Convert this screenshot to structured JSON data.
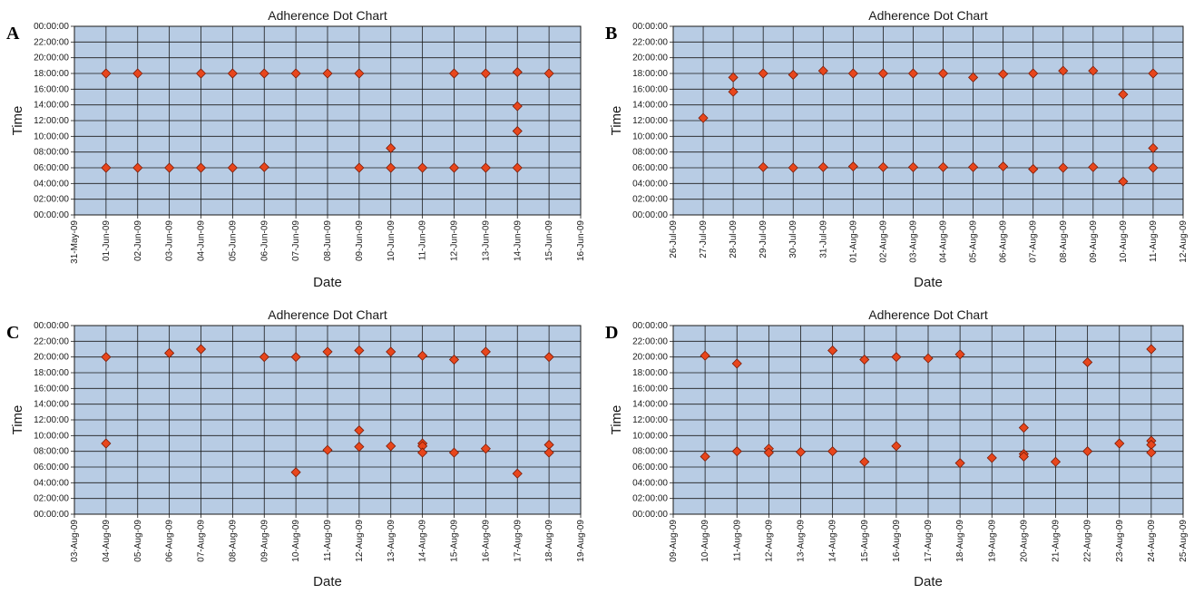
{
  "colors": {
    "plot_background": "#b8cce4",
    "grid": "#1a1a1a",
    "marker_fill": "#e8461c",
    "marker_stroke": "#7a1a06",
    "text": "#1a1a1a"
  },
  "marker_shape": "diamond",
  "chart_data": [
    {
      "panel_label": "A",
      "type": "scatter",
      "title": "Adherence Dot Chart",
      "xlabel": "Date",
      "ylabel": "Time",
      "grid": true,
      "y_ticks": [
        "00:00:00",
        "02:00:00",
        "04:00:00",
        "06:00:00",
        "08:00:00",
        "10:00:00",
        "12:00:00",
        "14:00:00",
        "16:00:00",
        "18:00:00",
        "20:00:00",
        "22:00:00",
        "00:00:00"
      ],
      "x_ticks": [
        "31-May-09",
        "01-Jun-09",
        "02-Jun-09",
        "03-Jun-09",
        "04-Jun-09",
        "05-Jun-09",
        "06-Jun-09",
        "07-Jun-09",
        "08-Jun-09",
        "09-Jun-09",
        "10-Jun-09",
        "11-Jun-09",
        "12-Jun-09",
        "13-Jun-09",
        "14-Jun-09",
        "15-Jun-09",
        "16-Jun-09"
      ],
      "points": [
        {
          "x": "01-Jun-09",
          "y": "18:00"
        },
        {
          "x": "01-Jun-09",
          "y": "06:00"
        },
        {
          "x": "02-Jun-09",
          "y": "18:00"
        },
        {
          "x": "02-Jun-09",
          "y": "06:00"
        },
        {
          "x": "03-Jun-09",
          "y": "06:00"
        },
        {
          "x": "04-Jun-09",
          "y": "18:00"
        },
        {
          "x": "04-Jun-09",
          "y": "06:00"
        },
        {
          "x": "05-Jun-09",
          "y": "18:00"
        },
        {
          "x": "05-Jun-09",
          "y": "06:00"
        },
        {
          "x": "06-Jun-09",
          "y": "18:00"
        },
        {
          "x": "06-Jun-09",
          "y": "06:05"
        },
        {
          "x": "07-Jun-09",
          "y": "18:00"
        },
        {
          "x": "08-Jun-09",
          "y": "18:00"
        },
        {
          "x": "09-Jun-09",
          "y": "18:00"
        },
        {
          "x": "09-Jun-09",
          "y": "06:00"
        },
        {
          "x": "10-Jun-09",
          "y": "08:30"
        },
        {
          "x": "10-Jun-09",
          "y": "06:00"
        },
        {
          "x": "11-Jun-09",
          "y": "06:00"
        },
        {
          "x": "12-Jun-09",
          "y": "18:00"
        },
        {
          "x": "12-Jun-09",
          "y": "06:00"
        },
        {
          "x": "13-Jun-09",
          "y": "18:00"
        },
        {
          "x": "13-Jun-09",
          "y": "06:00"
        },
        {
          "x": "14-Jun-09",
          "y": "18:10"
        },
        {
          "x": "14-Jun-09",
          "y": "13:50"
        },
        {
          "x": "14-Jun-09",
          "y": "10:40"
        },
        {
          "x": "14-Jun-09",
          "y": "06:00"
        },
        {
          "x": "15-Jun-09",
          "y": "18:00"
        }
      ]
    },
    {
      "panel_label": "B",
      "type": "scatter",
      "title": "Adherence Dot Chart",
      "xlabel": "Date",
      "ylabel": "Time",
      "grid": true,
      "y_ticks": [
        "00:00:00",
        "02:00:00",
        "04:00:00",
        "06:00:00",
        "08:00:00",
        "10:00:00",
        "12:00:00",
        "14:00:00",
        "16:00:00",
        "18:00:00",
        "20:00:00",
        "22:00:00",
        "00:00:00"
      ],
      "x_ticks": [
        "26-Jul-09",
        "27-Jul-09",
        "28-Jul-09",
        "29-Jul-09",
        "30-Jul-09",
        "31-Jul-09",
        "01-Aug-09",
        "02-Aug-09",
        "03-Aug-09",
        "04-Aug-09",
        "05-Aug-09",
        "06-Aug-09",
        "07-Aug-09",
        "08-Aug-09",
        "09-Aug-09",
        "10-Aug-09",
        "11-Aug-09",
        "12-Aug-09"
      ],
      "points": [
        {
          "x": "27-Jul-09",
          "y": "12:20"
        },
        {
          "x": "28-Jul-09",
          "y": "17:30"
        },
        {
          "x": "28-Jul-09",
          "y": "15:40"
        },
        {
          "x": "29-Jul-09",
          "y": "18:00"
        },
        {
          "x": "29-Jul-09",
          "y": "06:05"
        },
        {
          "x": "30-Jul-09",
          "y": "17:50"
        },
        {
          "x": "30-Jul-09",
          "y": "06:00"
        },
        {
          "x": "31-Jul-09",
          "y": "18:20"
        },
        {
          "x": "31-Jul-09",
          "y": "06:05"
        },
        {
          "x": "01-Aug-09",
          "y": "18:00"
        },
        {
          "x": "01-Aug-09",
          "y": "06:10"
        },
        {
          "x": "02-Aug-09",
          "y": "18:00"
        },
        {
          "x": "02-Aug-09",
          "y": "06:05"
        },
        {
          "x": "03-Aug-09",
          "y": "18:00"
        },
        {
          "x": "03-Aug-09",
          "y": "06:05"
        },
        {
          "x": "04-Aug-09",
          "y": "18:00"
        },
        {
          "x": "04-Aug-09",
          "y": "06:05"
        },
        {
          "x": "05-Aug-09",
          "y": "17:30"
        },
        {
          "x": "05-Aug-09",
          "y": "06:05"
        },
        {
          "x": "06-Aug-09",
          "y": "17:55"
        },
        {
          "x": "06-Aug-09",
          "y": "06:10"
        },
        {
          "x": "07-Aug-09",
          "y": "18:00"
        },
        {
          "x": "07-Aug-09",
          "y": "05:50"
        },
        {
          "x": "08-Aug-09",
          "y": "18:20"
        },
        {
          "x": "08-Aug-09",
          "y": "06:00"
        },
        {
          "x": "09-Aug-09",
          "y": "18:20"
        },
        {
          "x": "09-Aug-09",
          "y": "06:05"
        },
        {
          "x": "10-Aug-09",
          "y": "15:20"
        },
        {
          "x": "10-Aug-09",
          "y": "04:15"
        },
        {
          "x": "11-Aug-09",
          "y": "18:00"
        },
        {
          "x": "11-Aug-09",
          "y": "08:30"
        },
        {
          "x": "11-Aug-09",
          "y": "06:00"
        }
      ]
    },
    {
      "panel_label": "C",
      "type": "scatter",
      "title": "Adherence Dot Chart",
      "xlabel": "Date",
      "ylabel": "Time",
      "grid": true,
      "y_ticks": [
        "00:00:00",
        "02:00:00",
        "04:00:00",
        "06:00:00",
        "08:00:00",
        "10:00:00",
        "12:00:00",
        "14:00:00",
        "16:00:00",
        "18:00:00",
        "20:00:00",
        "22:00:00",
        "00:00:00"
      ],
      "x_ticks": [
        "03-Aug-09",
        "04-Aug-09",
        "05-Aug-09",
        "06-Aug-09",
        "07-Aug-09",
        "08-Aug-09",
        "09-Aug-09",
        "10-Aug-09",
        "11-Aug-09",
        "12-Aug-09",
        "13-Aug-09",
        "14-Aug-09",
        "15-Aug-09",
        "16-Aug-09",
        "17-Aug-09",
        "18-Aug-09",
        "19-Aug-09"
      ],
      "points": [
        {
          "x": "04-Aug-09",
          "y": "20:00"
        },
        {
          "x": "04-Aug-09",
          "y": "09:00"
        },
        {
          "x": "06-Aug-09",
          "y": "20:30"
        },
        {
          "x": "07-Aug-09",
          "y": "21:00"
        },
        {
          "x": "09-Aug-09",
          "y": "20:00"
        },
        {
          "x": "10-Aug-09",
          "y": "20:00"
        },
        {
          "x": "10-Aug-09",
          "y": "05:20"
        },
        {
          "x": "11-Aug-09",
          "y": "20:40"
        },
        {
          "x": "11-Aug-09",
          "y": "08:10"
        },
        {
          "x": "12-Aug-09",
          "y": "20:50"
        },
        {
          "x": "12-Aug-09",
          "y": "10:40"
        },
        {
          "x": "12-Aug-09",
          "y": "08:35"
        },
        {
          "x": "13-Aug-09",
          "y": "20:40"
        },
        {
          "x": "13-Aug-09",
          "y": "08:40"
        },
        {
          "x": "14-Aug-09",
          "y": "20:10"
        },
        {
          "x": "14-Aug-09",
          "y": "09:00"
        },
        {
          "x": "14-Aug-09",
          "y": "08:40"
        },
        {
          "x": "14-Aug-09",
          "y": "07:50"
        },
        {
          "x": "15-Aug-09",
          "y": "19:40"
        },
        {
          "x": "15-Aug-09",
          "y": "07:50"
        },
        {
          "x": "16-Aug-09",
          "y": "20:40"
        },
        {
          "x": "16-Aug-09",
          "y": "08:20"
        },
        {
          "x": "17-Aug-09",
          "y": "05:10"
        },
        {
          "x": "18-Aug-09",
          "y": "20:00"
        },
        {
          "x": "18-Aug-09",
          "y": "08:50"
        },
        {
          "x": "18-Aug-09",
          "y": "07:50"
        }
      ]
    },
    {
      "panel_label": "D",
      "type": "scatter",
      "title": "Adherence Dot Chart",
      "xlabel": "Date",
      "ylabel": "Time",
      "grid": true,
      "y_ticks": [
        "00:00:00",
        "02:00:00",
        "04:00:00",
        "06:00:00",
        "08:00:00",
        "10:00:00",
        "12:00:00",
        "14:00:00",
        "16:00:00",
        "18:00:00",
        "20:00:00",
        "22:00:00",
        "00:00:00"
      ],
      "x_ticks": [
        "09-Aug-09",
        "10-Aug-09",
        "11-Aug-09",
        "12-Aug-09",
        "13-Aug-09",
        "14-Aug-09",
        "15-Aug-09",
        "16-Aug-09",
        "17-Aug-09",
        "18-Aug-09",
        "19-Aug-09",
        "20-Aug-09",
        "21-Aug-09",
        "22-Aug-09",
        "23-Aug-09",
        "24-Aug-09",
        "25-Aug-09"
      ],
      "points": [
        {
          "x": "10-Aug-09",
          "y": "20:10"
        },
        {
          "x": "10-Aug-09",
          "y": "07:20"
        },
        {
          "x": "11-Aug-09",
          "y": "19:10"
        },
        {
          "x": "11-Aug-09",
          "y": "08:00"
        },
        {
          "x": "12-Aug-09",
          "y": "08:20"
        },
        {
          "x": "12-Aug-09",
          "y": "07:50"
        },
        {
          "x": "13-Aug-09",
          "y": "07:55"
        },
        {
          "x": "14-Aug-09",
          "y": "20:50"
        },
        {
          "x": "14-Aug-09",
          "y": "08:00"
        },
        {
          "x": "15-Aug-09",
          "y": "19:40"
        },
        {
          "x": "15-Aug-09",
          "y": "06:40"
        },
        {
          "x": "16-Aug-09",
          "y": "20:00"
        },
        {
          "x": "16-Aug-09",
          "y": "08:40"
        },
        {
          "x": "17-Aug-09",
          "y": "19:50"
        },
        {
          "x": "18-Aug-09",
          "y": "20:20"
        },
        {
          "x": "18-Aug-09",
          "y": "06:30"
        },
        {
          "x": "19-Aug-09",
          "y": "07:10"
        },
        {
          "x": "20-Aug-09",
          "y": "11:00"
        },
        {
          "x": "20-Aug-09",
          "y": "07:40"
        },
        {
          "x": "20-Aug-09",
          "y": "07:20"
        },
        {
          "x": "21-Aug-09",
          "y": "06:40"
        },
        {
          "x": "22-Aug-09",
          "y": "19:20"
        },
        {
          "x": "22-Aug-09",
          "y": "08:00"
        },
        {
          "x": "23-Aug-09",
          "y": "09:00"
        },
        {
          "x": "24-Aug-09",
          "y": "21:00"
        },
        {
          "x": "24-Aug-09",
          "y": "09:20"
        },
        {
          "x": "24-Aug-09",
          "y": "08:50"
        },
        {
          "x": "24-Aug-09",
          "y": "07:50"
        }
      ]
    }
  ]
}
